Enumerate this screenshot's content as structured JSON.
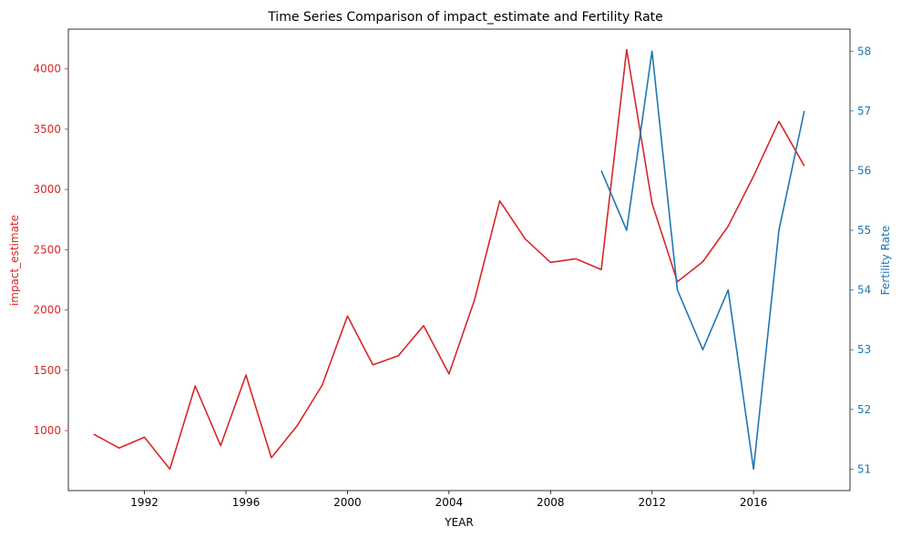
{
  "chart_data": {
    "type": "line",
    "title": "Time Series Comparison of impact_estimate and Fertility Rate",
    "xlabel": "YEAR",
    "ylabel_left": "impact_estimate",
    "ylabel_right": "Fertility Rate",
    "x_ticks": [
      1992,
      1996,
      2000,
      2004,
      2008,
      2012,
      2016
    ],
    "y_left_ticks": [
      1000,
      1500,
      2000,
      2500,
      3000,
      3500,
      4000
    ],
    "y_right_ticks": [
      51,
      52,
      53,
      54,
      55,
      56,
      57,
      58
    ],
    "xlim": [
      1989,
      2019.8
    ],
    "ylim_left": [
      502,
      4330
    ],
    "ylim_right": [
      50.64,
      58.37
    ],
    "grid": false,
    "colors": {
      "left": "#d62728",
      "right": "#1f77b4"
    },
    "series": [
      {
        "name": "impact_estimate",
        "axis": "left",
        "x": [
          1990,
          1991,
          1992,
          1993,
          1994,
          1995,
          1996,
          1997,
          1998,
          1999,
          2000,
          2001,
          2002,
          2003,
          2004,
          2005,
          2006,
          2007,
          2008,
          2009,
          2010,
          2011,
          2012,
          2013,
          2014,
          2015,
          2016,
          2017,
          2018
        ],
        "values": [
          970,
          855,
          945,
          680,
          1370,
          875,
          1460,
          775,
          1035,
          1375,
          1950,
          1545,
          1620,
          1870,
          1470,
          2080,
          2905,
          2590,
          2395,
          2425,
          2335,
          4160,
          2885,
          2235,
          2400,
          2695,
          3110,
          3565,
          3195
        ]
      },
      {
        "name": "Fertility Rate",
        "axis": "right",
        "x": [
          2010,
          2011,
          2012,
          2013,
          2014,
          2015,
          2016,
          2017,
          2018
        ],
        "values": [
          56,
          55,
          58,
          54,
          53,
          54,
          51,
          55,
          57
        ]
      }
    ]
  }
}
